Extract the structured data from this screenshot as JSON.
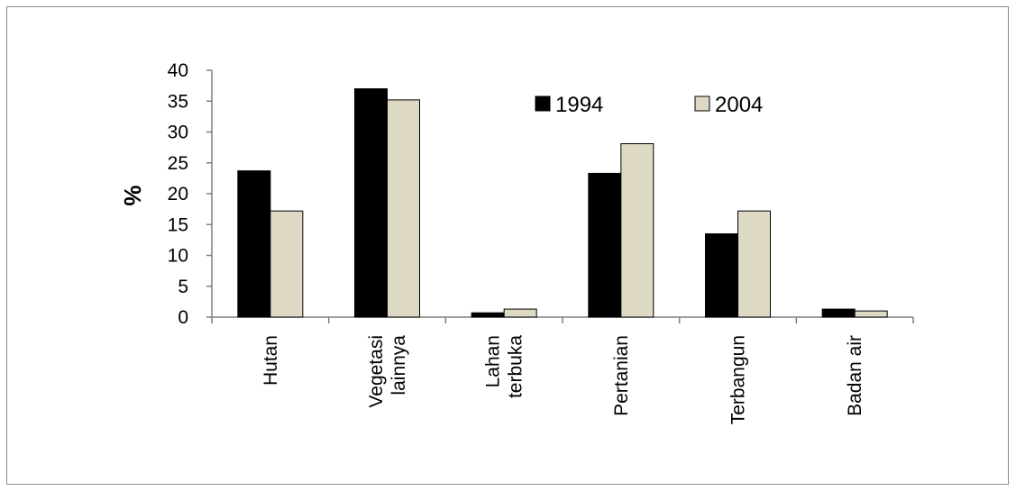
{
  "chart_data": {
    "type": "bar",
    "title": "",
    "xlabel": "",
    "ylabel": "%",
    "ylim": [
      0,
      40
    ],
    "yticks": [
      "0",
      "5",
      "10",
      "15",
      "20",
      "25",
      "30",
      "35",
      "40"
    ],
    "grid": false,
    "legend_position": "top-right",
    "categories": [
      [
        "Hutan"
      ],
      [
        "Vegetasi",
        "lainnya"
      ],
      [
        "Lahan",
        "terbuka"
      ],
      [
        "Pertanian"
      ],
      [
        "Terbangun"
      ],
      [
        "Badan air"
      ]
    ],
    "series": [
      {
        "name": "1994",
        "color": "#000000",
        "values": [
          23.7,
          37.0,
          0.7,
          23.3,
          13.5,
          1.3
        ]
      },
      {
        "name": "2004",
        "color": "#ddd9c4",
        "values": [
          17.2,
          35.2,
          1.3,
          28.1,
          17.2,
          1.0
        ]
      }
    ]
  }
}
